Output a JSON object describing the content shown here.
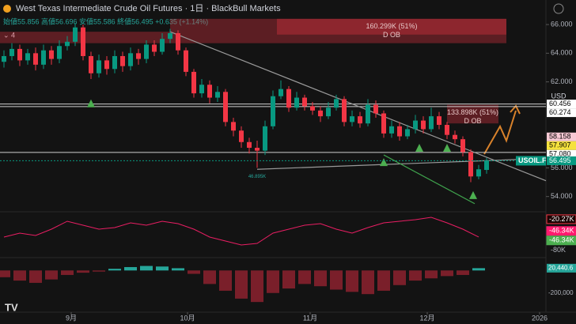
{
  "chart_data": {
    "type": "candlestick",
    "title": "West Texas Intermediate Crude Oil Futures · 1日 · BlackBull Markets",
    "subtitle": "始値55.856 高値56.696 安値55.586 終値56.495 +0.635 (+1.14%)",
    "indicator_count": 4,
    "up_color": "#089981",
    "down_color": "#f23645",
    "open": [
      63.4,
      63.8,
      64.3,
      63.5,
      64.0,
      63.2,
      64.2,
      63.6,
      64.5,
      64.8,
      65.8,
      63.8,
      62.6,
      63.5,
      62.9,
      63.8,
      63.1,
      64.0,
      63.6,
      64.6,
      64.1,
      65.0,
      65.4,
      64.2,
      62.7,
      61.2,
      61.8,
      60.9,
      61.3,
      59.2,
      58.6,
      57.8,
      57.4,
      57.2,
      58.9,
      61.0,
      61.5,
      60.2,
      60.9,
      60.3,
      60.0,
      59.6,
      60.2,
      60.8,
      59.2,
      59.6,
      59.1,
      60.4,
      59.8,
      58.4,
      58.9,
      58.2,
      58.7,
      59.3,
      58.7,
      59.6,
      59.0,
      58.3,
      58.0,
      57.1,
      55.4,
      55.856
    ],
    "high": [
      64.2,
      64.7,
      64.6,
      64.3,
      64.4,
      64.6,
      64.5,
      64.9,
      65.2,
      66.1,
      66.0,
      64.1,
      63.9,
      63.8,
      64.2,
      64.1,
      64.4,
      64.3,
      64.9,
      64.9,
      65.4,
      65.7,
      65.6,
      64.4,
      62.9,
      62.2,
      62.1,
      61.7,
      61.5,
      59.5,
      58.9,
      58.1,
      57.9,
      59.3,
      61.4,
      62.1,
      61.7,
      61.3,
      61.1,
      60.6,
      60.3,
      60.6,
      61.1,
      61.0,
      60.0,
      59.9,
      60.8,
      60.7,
      60.0,
      59.3,
      59.2,
      59.0,
      59.7,
      59.6,
      60.2,
      59.9,
      59.2,
      58.6,
      58.2,
      57.3,
      56.2,
      56.696
    ],
    "low": [
      63.0,
      63.5,
      63.1,
      63.2,
      62.8,
      62.9,
      63.2,
      63.3,
      64.2,
      64.5,
      63.5,
      62.2,
      62.3,
      62.5,
      62.6,
      62.7,
      62.8,
      63.2,
      63.3,
      63.8,
      63.9,
      64.7,
      63.9,
      62.4,
      60.9,
      60.9,
      60.5,
      60.6,
      58.9,
      58.2,
      57.4,
      57.0,
      56.0,
      56.9,
      58.7,
      60.8,
      59.9,
      60.0,
      60.0,
      59.7,
      59.2,
      59.4,
      60.0,
      58.9,
      58.9,
      58.8,
      58.9,
      59.5,
      58.1,
      58.1,
      57.9,
      58.0,
      58.4,
      58.4,
      58.5,
      58.7,
      58.0,
      57.7,
      56.8,
      55.0,
      55.2,
      55.586
    ],
    "close": [
      63.8,
      64.3,
      63.5,
      64.0,
      63.2,
      64.2,
      63.6,
      64.5,
      64.8,
      65.8,
      63.8,
      62.6,
      63.5,
      62.9,
      63.8,
      63.1,
      64.0,
      63.6,
      64.6,
      64.1,
      65.0,
      65.4,
      64.2,
      62.7,
      61.2,
      61.8,
      60.9,
      61.3,
      59.2,
      58.6,
      57.8,
      57.4,
      57.2,
      58.9,
      61.0,
      61.5,
      60.2,
      60.9,
      60.3,
      60.0,
      59.6,
      60.2,
      60.8,
      59.2,
      59.6,
      59.1,
      60.4,
      59.8,
      58.4,
      58.9,
      58.2,
      58.7,
      59.3,
      58.7,
      59.6,
      59.0,
      58.3,
      58.0,
      57.1,
      55.4,
      55.9,
      56.495
    ],
    "xlim": [
      -0.5,
      68.5
    ],
    "xticks": [
      {
        "value": 8.5,
        "label": "9月"
      },
      {
        "value": 23.2,
        "label": "10月"
      },
      {
        "value": 38.7,
        "label": "11月"
      },
      {
        "value": 53.5,
        "label": "12月"
      },
      {
        "value": 67.7,
        "label": "2026"
      }
    ],
    "ylim": [
      53.1,
      66.5
    ],
    "yticks": [
      {
        "value": 66,
        "label": "66.000"
      },
      {
        "value": 64,
        "label": "64.000"
      },
      {
        "value": 62,
        "label": "62.000"
      },
      {
        "value": 56,
        "label": "56.000"
      },
      {
        "value": 54,
        "label": "54.000"
      }
    ],
    "y_unit": "USD",
    "price_lines": [
      {
        "value": 60.456,
        "color": "#ffffff",
        "text_color": "#000000",
        "line": true
      },
      {
        "value": 60.274,
        "color": "#ffffff",
        "text_color": "#000000",
        "line": true
      },
      {
        "value": 58.158,
        "color": "#f8c9d4",
        "text_color": "#000000",
        "line": false
      },
      {
        "value": 57.907,
        "color": "#f5e23c",
        "text_color": "#000000",
        "line": false
      },
      {
        "value": 57.08,
        "label": "57.080",
        "color": "#ffffff",
        "text_color": "#000000",
        "line": true
      }
    ],
    "last_price": {
      "name": "USOIL.F",
      "value": 56.495,
      "color": "#089981"
    },
    "zones": [
      {
        "start": -0.5,
        "end": 21,
        "top": 65.5,
        "bottom": 64.7
      },
      {
        "start": 21,
        "end": 63.5,
        "top": 66.4,
        "bottom": 64.7
      },
      {
        "start": 34.5,
        "end": 63.5,
        "top": 66.4,
        "bottom": 65.3,
        "text": "160.299K (51%)",
        "label": "D OB"
      },
      {
        "start": 56,
        "end": 62.5,
        "top": 60.4,
        "bottom": 59.1,
        "text": "133.898K (51%)",
        "label": "D OB"
      }
    ],
    "trendlines": [
      {
        "from": [
          21,
          65.5
        ],
        "to": [
          68.5,
          55.1
        ],
        "color": "#9a9a9a"
      },
      {
        "from": [
          32,
          55.9
        ],
        "to": [
          68.5,
          56.66
        ],
        "color": "#9a9a9a"
      },
      {
        "from": [
          48,
          56.9
        ],
        "to": [
          59.5,
          53.5
        ],
        "color": "#3fa34d"
      }
    ],
    "markers": [
      {
        "x": 11,
        "price": 60.5
      },
      {
        "x": 48,
        "price": 56.4
      },
      {
        "x": 52.5,
        "price": 57.4
      },
      {
        "x": 56,
        "price": 57.4
      },
      {
        "x": 59.3,
        "price": 54.1
      }
    ],
    "annotation": {
      "text": "46.895K",
      "x": 32,
      "price": 55.4
    },
    "oscillator": {
      "color": "#e91e63",
      "ylim": [
        -95,
        5
      ],
      "values": [
        -51.1,
        -42.4,
        -47.6,
        -33.6,
        -16.0,
        -24.8,
        -33.6,
        -30.1,
        -19.6,
        -24.8,
        -16.0,
        -21.3,
        -33.6,
        -51.1,
        -59.9,
        -68.7,
        -65.2,
        -42.4,
        -33.6,
        -24.8,
        -21.3,
        -33.6,
        -42.4,
        -30.1,
        -19.6,
        -16.0,
        -12.5,
        -7.3,
        -19.6,
        -33.6,
        -51.1
      ],
      "labels": [
        {
          "value": -20.27,
          "label": "-20.27K",
          "color": "#1a0000",
          "border": "#f23645"
        },
        {
          "value": -46.34,
          "label": "-46.34K",
          "color": "#ff1a6e",
          "border": "#ff1a6e"
        },
        {
          "value": -46.34,
          "label": "-46.34K",
          "color": "#4caf50",
          "border": "#4caf50"
        }
      ],
      "ticks": [
        {
          "value": -80,
          "label": "-80K"
        }
      ]
    },
    "histogram": {
      "ylim": [
        -370000,
        100000
      ],
      "up_color": "#26a69a",
      "down_color": "#7a1f2a",
      "values": [
        -60000,
        -90000,
        -110000,
        -80000,
        -40000,
        -20000,
        -10000,
        15000,
        30000,
        40000,
        35000,
        20000,
        -30000,
        -120000,
        -180000,
        -250000,
        -280000,
        -200000,
        -160000,
        -120000,
        -140000,
        -170000,
        -190000,
        -210000,
        -180000,
        -130000,
        -90000,
        -70000,
        -50000,
        -40000
      ],
      "current": {
        "value": 20440.6,
        "label": "20,440.6",
        "color": "#26a69a"
      },
      "ticks": [
        {
          "value": -200000,
          "label": "-200,000"
        }
      ]
    }
  }
}
